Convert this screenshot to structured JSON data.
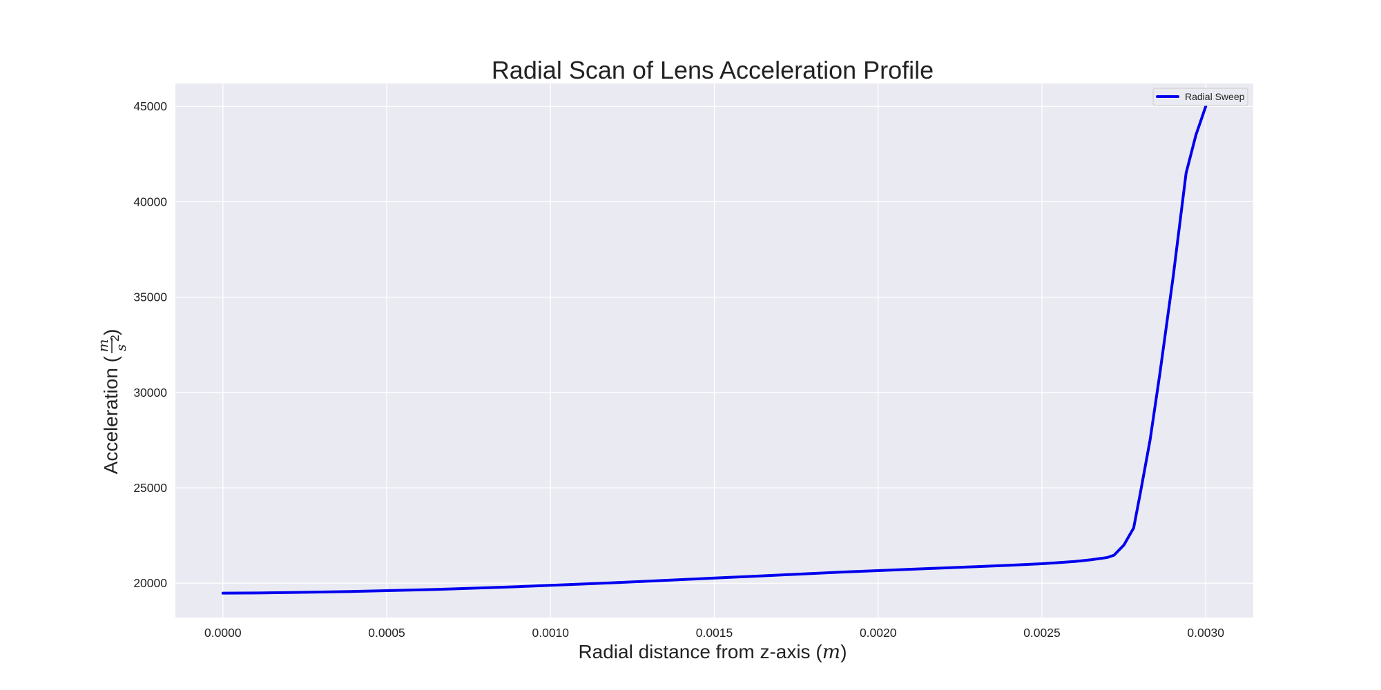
{
  "chart_data": {
    "type": "line",
    "title": "Radial Scan of Lens Acceleration Profile",
    "xlabel": {
      "prefix": "Radial distance from z-axis (",
      "unit": "m",
      "suffix": ")"
    },
    "ylabel": {
      "prefix": "Acceleration (",
      "unit_numerator": "m",
      "unit_denominator": "s",
      "unit_exponent": "2",
      "suffix": ")"
    },
    "xlim": [
      -0.000145,
      0.003145
    ],
    "ylim": [
      18200,
      46200
    ],
    "xticks": [
      0.0,
      0.0005,
      0.001,
      0.0015,
      0.002,
      0.0025,
      0.003
    ],
    "xtick_labels": [
      "0.0000",
      "0.0005",
      "0.0010",
      "0.0015",
      "0.0020",
      "0.0025",
      "0.0030"
    ],
    "yticks": [
      20000,
      25000,
      30000,
      35000,
      40000,
      45000
    ],
    "ytick_labels": [
      "20000",
      "25000",
      "30000",
      "35000",
      "40000",
      "45000"
    ],
    "grid": true,
    "legend_position": "top-right",
    "colors": {
      "plot_background": "#eaeaf2",
      "grid": "#ffffff",
      "line": "#0000ee"
    },
    "series": [
      {
        "name": "Radial Sweep",
        "x": [
          0.0,
          0.0001,
          0.0002,
          0.0003,
          0.0004,
          0.0005,
          0.0006,
          0.0007,
          0.0008,
          0.0009,
          0.001,
          0.0011,
          0.0012,
          0.0013,
          0.0014,
          0.0015,
          0.0016,
          0.0017,
          0.0018,
          0.0019,
          0.002,
          0.0021,
          0.0022,
          0.0023,
          0.0024,
          0.0025,
          0.0026,
          0.00265,
          0.0027,
          0.00272,
          0.00275,
          0.00278,
          0.0028,
          0.00283,
          0.00286,
          0.0029,
          0.00294,
          0.00297,
          0.003
        ],
        "y": [
          19480,
          19490,
          19510,
          19540,
          19570,
          19610,
          19650,
          19700,
          19760,
          19820,
          19890,
          19960,
          20030,
          20110,
          20190,
          20270,
          20350,
          20430,
          20510,
          20590,
          20660,
          20730,
          20800,
          20870,
          20940,
          21020,
          21140,
          21230,
          21350,
          21470,
          22000,
          22900,
          24700,
          27500,
          31000,
          36000,
          41500,
          43500,
          45000
        ]
      }
    ]
  }
}
